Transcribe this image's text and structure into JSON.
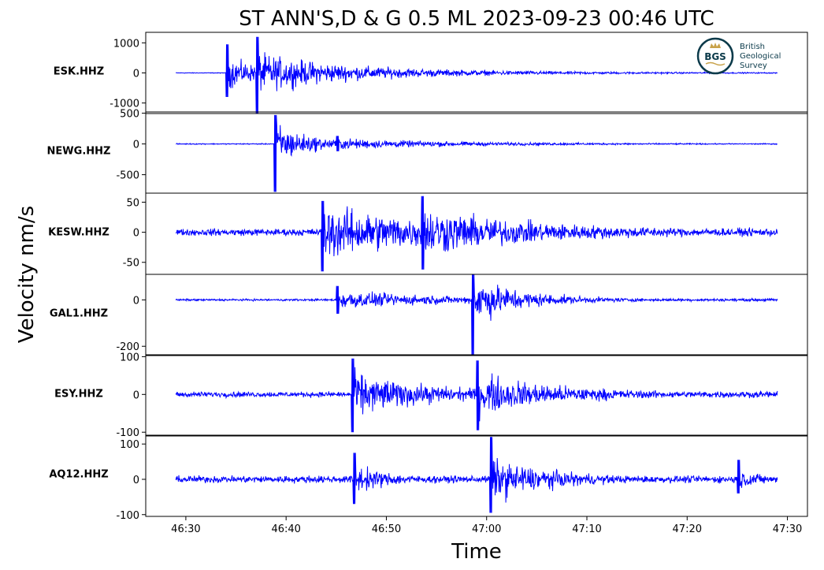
{
  "title": "ST ANN'S,D & G 0.5 ML   2023-09-23 00:46 UTC",
  "ylabel": "Velocity nm/s",
  "xlabel": "Time",
  "logo": {
    "abbr": "BGS",
    "line1": "British",
    "line2": "Geological",
    "line3": "Survey"
  },
  "colors": {
    "trace": "#0000ff",
    "frame": "#000000",
    "logo": "#0b3a4a",
    "logo_gold": "#c8a24a"
  },
  "chart_data": {
    "type": "line",
    "x_unit": "time (mm:ss after 00:00 UTC)",
    "xlim": [
      "46:26",
      "47:32"
    ],
    "x_ticks": [
      "46:30",
      "46:40",
      "46:50",
      "47:00",
      "47:10",
      "47:20",
      "47:30"
    ],
    "trace_start": "46:29",
    "trace_end": "47:29",
    "panels": [
      {
        "station": "ESK.HHZ",
        "ylim": [
          -1350,
          1350
        ],
        "y_ticks": [
          1000,
          0,
          -1000
        ],
        "y_tick_labels": [
          "1000",
          "0",
          "-1000"
        ],
        "features": {
          "pre_event_amplitude": 15,
          "coda_amplitude": 8,
          "events": [
            {
              "time": "46:34",
              "peak_max": 950,
              "peak_min": -800,
              "decay_s": 3,
              "coda": 250
            },
            {
              "time": "46:37",
              "peak_max": 1200,
              "peak_min": -1350,
              "decay_s": 8,
              "coda": 200
            }
          ]
        }
      },
      {
        "station": "NEWG.HHZ",
        "ylim": [
          -800,
          520
        ],
        "y_ticks": [
          500,
          0,
          -500
        ],
        "y_tick_labels": [
          "500",
          "0",
          "-500"
        ],
        "features": {
          "pre_event_amplitude": 12,
          "coda_amplitude": 10,
          "events": [
            {
              "time": "46:38.8",
              "peak_max": 470,
              "peak_min": -780,
              "decay_s": 3,
              "coda": 90
            },
            {
              "time": "46:45",
              "peak_max": 130,
              "peak_min": -120,
              "decay_s": 8,
              "coda": 60
            }
          ]
        }
      },
      {
        "station": "KESW.HHZ",
        "ylim": [
          -70,
          65
        ],
        "y_ticks": [
          50,
          0,
          -50
        ],
        "y_tick_labels": [
          "50",
          "0",
          "-50"
        ],
        "features": {
          "pre_event_amplitude": 8,
          "coda_amplitude": 9,
          "events": [
            {
              "time": "46:43.5",
              "peak_max": 52,
              "peak_min": -65,
              "decay_s": 10,
              "coda": 28
            },
            {
              "time": "46:53.5",
              "peak_max": 60,
              "peak_min": -62,
              "decay_s": 8,
              "coda": 25
            }
          ]
        }
      },
      {
        "station": "GAL1.HHZ",
        "ylim": [
          -240,
          110
        ],
        "y_ticks": [
          0,
          -200
        ],
        "y_tick_labels": [
          "0",
          "-200"
        ],
        "features": {
          "pre_event_amplitude": 6,
          "coda_amplitude": 8,
          "events": [
            {
              "time": "46:45",
              "peak_max": 60,
              "peak_min": -60,
              "decay_s": 8,
              "coda": 25
            },
            {
              "time": "46:58.5",
              "peak_max": 110,
              "peak_min": -235,
              "decay_s": 4,
              "coda": 30
            }
          ]
        }
      },
      {
        "station": "ESY.HHZ",
        "ylim": [
          -110,
          105
        ],
        "y_ticks": [
          100,
          0,
          -100
        ],
        "y_tick_labels": [
          "100",
          "0",
          "-100"
        ],
        "features": {
          "pre_event_amplitude": 10,
          "coda_amplitude": 12,
          "events": [
            {
              "time": "46:46.5",
              "peak_max": 95,
              "peak_min": -100,
              "decay_s": 6,
              "coda": 30
            },
            {
              "time": "46:59",
              "peak_max": 90,
              "peak_min": -95,
              "decay_s": 6,
              "coda": 30
            }
          ]
        }
      },
      {
        "station": "AQ12.HHZ",
        "ylim": [
          -105,
          125
        ],
        "y_ticks": [
          100,
          0,
          -100
        ],
        "y_tick_labels": [
          "100",
          "0",
          "-100"
        ],
        "features": {
          "pre_event_amplitude": 14,
          "coda_amplitude": 12,
          "events": [
            {
              "time": "46:46.7",
              "peak_max": 75,
              "peak_min": -70,
              "decay_s": 3,
              "coda": 20
            },
            {
              "time": "47:00.3",
              "peak_max": 120,
              "peak_min": -95,
              "decay_s": 5,
              "coda": 25
            },
            {
              "time": "47:25",
              "peak_max": 55,
              "peak_min": -40,
              "decay_s": 2,
              "coda": 15
            }
          ]
        }
      }
    ]
  }
}
